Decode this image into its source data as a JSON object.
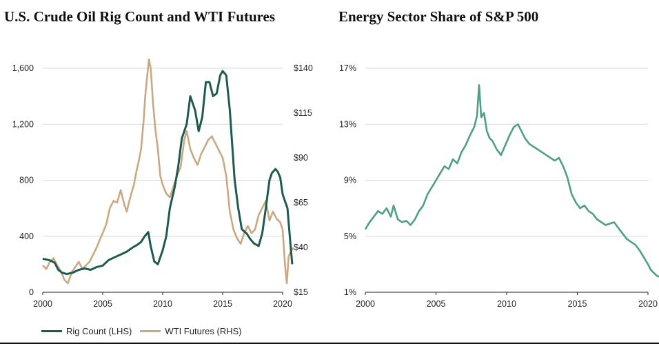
{
  "titles": {
    "left": "U.S. Crude Oil Rig Count and WTI Futures",
    "right": "Energy Sector Share of S&P 500"
  },
  "legend": {
    "rig": "Rig Count (LHS)",
    "wti": "WTI Futures (RHS)"
  },
  "colors": {
    "rig": "#1e5a4e",
    "wti": "#c9a882",
    "energy": "#4f9e86",
    "grid": "#d9d9d9"
  },
  "chart_data": [
    {
      "type": "line",
      "title": "U.S. Crude Oil Rig Count and WTI Futures",
      "xlabel": "",
      "xlim": [
        2000,
        2020
      ],
      "xticks": [
        "2000",
        "2005",
        "2010",
        "2015",
        "2020"
      ],
      "y_left": {
        "label": "Rig Count (LHS)",
        "ylim": [
          0,
          1600
        ],
        "ticks": [
          "0",
          "400",
          "800",
          "1,200",
          "1,600"
        ]
      },
      "y_right": {
        "label": "WTI Futures (RHS)",
        "ylim": [
          15,
          140
        ],
        "ticks": [
          "$15",
          "$40",
          "$65",
          "$90",
          "$115",
          "$140"
        ]
      },
      "series": [
        {
          "name": "Rig Count (LHS)",
          "axis": "left",
          "x": [
            2000.0,
            2000.5,
            2000.8,
            2001.0,
            2001.3,
            2001.6,
            2002.0,
            2002.5,
            2003.0,
            2003.5,
            2004.0,
            2004.5,
            2005.0,
            2005.5,
            2006.0,
            2006.5,
            2007.0,
            2007.5,
            2007.9,
            2008.2,
            2008.5,
            2008.8,
            2009.0,
            2009.3,
            2009.6,
            2010.0,
            2010.3,
            2010.6,
            2011.0,
            2011.3,
            2011.6,
            2012.0,
            2012.3,
            2012.7,
            2013.0,
            2013.3,
            2013.6,
            2013.9,
            2014.2,
            2014.5,
            2014.8,
            2015.0,
            2015.3,
            2015.6,
            2016.0,
            2016.3,
            2016.6,
            2017.0,
            2017.3,
            2017.6,
            2018.0,
            2018.3,
            2018.6,
            2018.9,
            2019.1,
            2019.4,
            2019.6,
            2019.8,
            2020.0,
            2020.2,
            2020.4,
            2020.6,
            2020.8
          ],
          "values": [
            240,
            230,
            220,
            210,
            160,
            140,
            130,
            140,
            160,
            170,
            160,
            180,
            190,
            230,
            250,
            270,
            290,
            320,
            340,
            360,
            400,
            430,
            330,
            220,
            200,
            300,
            400,
            600,
            750,
            900,
            1100,
            1200,
            1400,
            1300,
            1150,
            1250,
            1500,
            1500,
            1400,
            1420,
            1550,
            1580,
            1550,
            1300,
            800,
            600,
            450,
            420,
            380,
            350,
            330,
            420,
            600,
            800,
            850,
            880,
            860,
            820,
            700,
            650,
            600,
            400,
            200
          ]
        },
        {
          "name": "WTI Futures (RHS)",
          "axis": "right",
          "x": [
            2000.0,
            2000.3,
            2000.6,
            2000.9,
            2001.2,
            2001.5,
            2001.8,
            2002.1,
            2002.4,
            2002.7,
            2003.0,
            2003.3,
            2003.6,
            2003.9,
            2004.2,
            2004.5,
            2004.8,
            2005.0,
            2005.3,
            2005.6,
            2005.9,
            2006.2,
            2006.5,
            2006.8,
            2007.0,
            2007.3,
            2007.6,
            2007.8,
            2008.0,
            2008.2,
            2008.4,
            2008.55,
            2008.7,
            2008.85,
            2009.0,
            2009.2,
            2009.4,
            2009.6,
            2009.8,
            2010.0,
            2010.3,
            2010.6,
            2010.9,
            2011.2,
            2011.5,
            2011.8,
            2012.0,
            2012.3,
            2012.6,
            2012.9,
            2013.2,
            2013.5,
            2013.8,
            2014.1,
            2014.4,
            2014.7,
            2015.0,
            2015.3,
            2015.6,
            2015.9,
            2016.2,
            2016.5,
            2016.8,
            2017.1,
            2017.4,
            2017.7,
            2018.0,
            2018.3,
            2018.6,
            2018.9,
            2019.2,
            2019.5,
            2019.8,
            2020.0,
            2020.2,
            2020.35,
            2020.5,
            2020.7,
            2020.9
          ],
          "values": [
            30,
            28,
            32,
            34,
            30,
            27,
            22,
            20,
            26,
            29,
            32,
            28,
            30,
            32,
            36,
            40,
            45,
            48,
            53,
            62,
            66,
            65,
            72,
            64,
            60,
            68,
            75,
            82,
            88,
            95,
            110,
            125,
            135,
            145,
            140,
            120,
            105,
            95,
            80,
            75,
            70,
            68,
            74,
            80,
            85,
            100,
            105,
            95,
            90,
            86,
            92,
            96,
            100,
            102,
            98,
            94,
            90,
            80,
            60,
            50,
            45,
            42,
            48,
            52,
            48,
            50,
            58,
            62,
            66,
            55,
            60,
            56,
            54,
            50,
            30,
            20,
            35,
            38,
            40
          ]
        }
      ]
    },
    {
      "type": "line",
      "title": "Energy Sector Share of S&P 500",
      "xlabel": "",
      "xlim": [
        2000,
        2020
      ],
      "xticks": [
        "2000",
        "2005",
        "2010",
        "2015",
        "2020"
      ],
      "ylim": [
        1,
        17
      ],
      "yticks": [
        "1%",
        "5%",
        "9%",
        "13%",
        "17%"
      ],
      "series": [
        {
          "name": "Energy Sector Share",
          "x": [
            2000.0,
            2000.3,
            2000.6,
            2000.9,
            2001.2,
            2001.5,
            2001.8,
            2002.0,
            2002.3,
            2002.6,
            2002.9,
            2003.2,
            2003.5,
            2003.8,
            2004.1,
            2004.4,
            2004.7,
            2005.0,
            2005.3,
            2005.6,
            2005.9,
            2006.2,
            2006.5,
            2006.8,
            2007.1,
            2007.4,
            2007.7,
            2007.9,
            2008.05,
            2008.2,
            2008.4,
            2008.6,
            2008.8,
            2009.0,
            2009.3,
            2009.6,
            2009.9,
            2010.2,
            2010.5,
            2010.8,
            2011.0,
            2011.3,
            2011.6,
            2011.9,
            2012.2,
            2012.5,
            2012.8,
            2013.1,
            2013.4,
            2013.7,
            2014.0,
            2014.3,
            2014.6,
            2014.9,
            2015.2,
            2015.5,
            2015.8,
            2016.1,
            2016.4,
            2016.7,
            2017.0,
            2017.3,
            2017.6,
            2017.9,
            2018.2,
            2018.5,
            2018.8,
            2019.1,
            2019.4,
            2019.7,
            2020.0,
            2020.2,
            2020.4,
            2020.6,
            2020.8
          ],
          "values": [
            5.5,
            6.0,
            6.4,
            6.8,
            6.6,
            7.0,
            6.4,
            7.2,
            6.2,
            6.0,
            6.1,
            5.8,
            6.2,
            6.8,
            7.2,
            8.0,
            8.5,
            9.0,
            9.5,
            10.0,
            9.8,
            10.5,
            10.2,
            11.0,
            11.5,
            12.2,
            12.8,
            13.6,
            15.8,
            13.5,
            13.8,
            12.5,
            12.0,
            11.8,
            11.2,
            10.8,
            11.5,
            12.2,
            12.8,
            13.0,
            12.6,
            12.0,
            11.6,
            11.4,
            11.2,
            11.0,
            10.8,
            10.6,
            10.4,
            10.6,
            10.0,
            9.2,
            8.0,
            7.4,
            7.0,
            7.2,
            6.8,
            6.6,
            6.2,
            6.0,
            5.8,
            5.9,
            6.0,
            5.6,
            5.2,
            4.8,
            4.6,
            4.4,
            4.0,
            3.5,
            3.0,
            2.6,
            2.4,
            2.2,
            2.1
          ]
        }
      ]
    }
  ]
}
